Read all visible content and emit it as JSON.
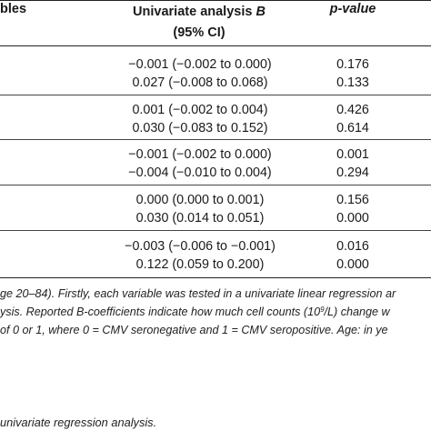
{
  "header": {
    "variables": "bles",
    "b_line1": "Univariate analysis B",
    "b_line2": "(95% CI)",
    "p_label": "p-value"
  },
  "rows": [
    {
      "b": "−0.001 (−0.002 to 0.000)",
      "p": "0.176"
    },
    {
      "b": "0.027 (−0.008 to 0.068)",
      "p": "0.133"
    },
    {
      "b": "0.001 (−0.002 to 0.004)",
      "p": "0.426"
    },
    {
      "b": "0.030 (−0.083 to 0.152)",
      "p": "0.614"
    },
    {
      "b": "−0.001 (−0.002 to 0.000)",
      "p": "0.001"
    },
    {
      "b": "−0.004 (−0.010 to 0.004)",
      "p": "0.294"
    },
    {
      "b": "0.000 (0.000 to 0.001)",
      "p": "0.156"
    },
    {
      "b": "0.030 (0.014 to 0.051)",
      "p": "0.000"
    },
    {
      "b": "−0.003 (−0.006 to −0.001)",
      "p": "0.016"
    },
    {
      "b": "0.122 (0.059 to 0.200)",
      "p": "0.000"
    }
  ],
  "footnote": {
    "line1": "ge 20–84). Firstly, each variable was tested in a univariate linear regression ar",
    "line2a": "ysis. Reported B-coefficients indicate how much cell counts (10",
    "line2_sup": "9",
    "line2b": "/L) change w",
    "line3": "of 0 or 1, where 0 = CMV seronegative and 1 = CMV seropositive. Age: in ye",
    "caption": "univariate regression analysis."
  }
}
